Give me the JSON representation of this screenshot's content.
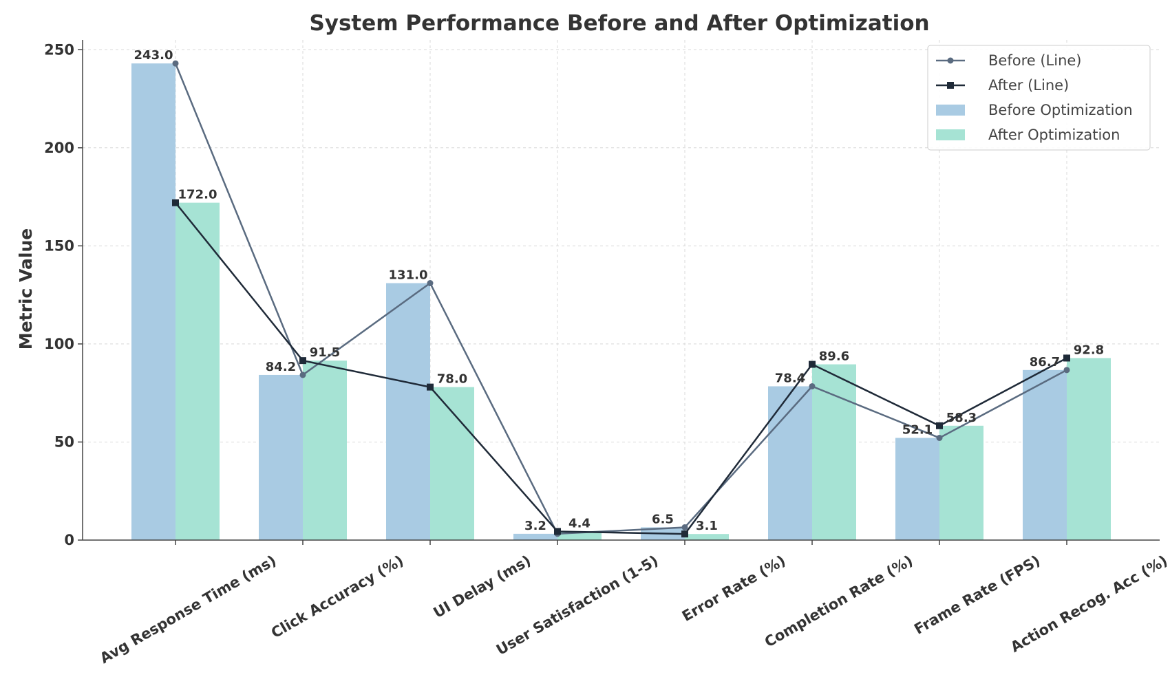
{
  "chart_data": {
    "type": "bar",
    "title": "System Performance Before and After Optimization",
    "xlabel": "",
    "ylabel": "Metric Value",
    "ylim": [
      0,
      255
    ],
    "yticks": [
      0,
      50,
      100,
      150,
      200,
      250
    ],
    "grid": true,
    "legend_position": "top-right",
    "categories": [
      "Avg Response Time (ms)",
      "Click Accuracy (%)",
      "UI Delay (ms)",
      "User Satisfaction (1-5)",
      "Error Rate (%)",
      "Completion Rate (%)",
      "Frame Rate (FPS)",
      "Action Recog. Acc (%)"
    ],
    "series": [
      {
        "name": "Before Optimization",
        "kind": "bar",
        "color": "#a9cbe3",
        "values": [
          243.0,
          84.2,
          131.0,
          3.2,
          6.5,
          78.4,
          52.1,
          86.7
        ]
      },
      {
        "name": "After Optimization",
        "kind": "bar",
        "color": "#a6e3d4",
        "values": [
          172.0,
          91.5,
          78.0,
          4.4,
          3.1,
          89.6,
          58.3,
          92.8
        ]
      },
      {
        "name": "Before (Line)",
        "kind": "line",
        "marker": "circle",
        "color": "#5a6b80",
        "values": [
          243.0,
          84.2,
          131.0,
          3.2,
          6.5,
          78.4,
          52.1,
          86.7
        ]
      },
      {
        "name": "After (Line)",
        "kind": "line",
        "marker": "square",
        "color": "#1f2a38",
        "values": [
          172.0,
          91.5,
          78.0,
          4.4,
          3.1,
          89.6,
          58.3,
          92.8
        ]
      }
    ],
    "data_labels": {
      "before": [
        "243.0",
        "84.2",
        "131.0",
        "3.2",
        "6.5",
        "78.4",
        "52.1",
        "86.7"
      ],
      "after": [
        "172.0",
        "91.5",
        "78.0",
        "4.4",
        "3.1",
        "89.6",
        "58.3",
        "92.8"
      ]
    },
    "legend_order": [
      "Before (Line)",
      "After (Line)",
      "Before Optimization",
      "After Optimization"
    ]
  }
}
